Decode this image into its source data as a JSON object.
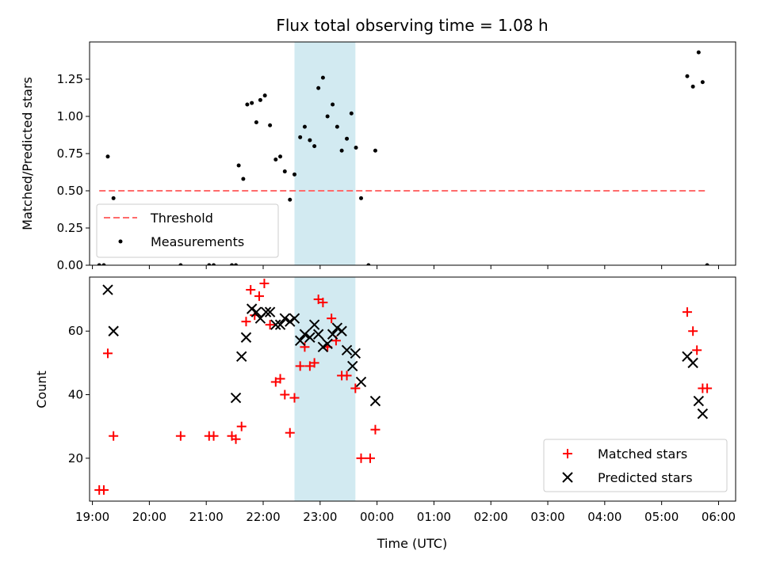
{
  "chart_data": {
    "title": "Flux total observing time = 1.08 h",
    "xlabel": "Time (UTC)",
    "x_tick_labels": [
      "19:00",
      "20:00",
      "21:00",
      "22:00",
      "23:00",
      "00:00",
      "01:00",
      "02:00",
      "03:00",
      "04:00",
      "05:00",
      "06:00"
    ],
    "x_ticks_hours": [
      19,
      20,
      21,
      22,
      23,
      24,
      25,
      26,
      27,
      28,
      29,
      30
    ],
    "xlim_hours": [
      18.95,
      30.3
    ],
    "shaded_span_hours": [
      22.55,
      23.62
    ],
    "shaded_color": "#add8e6",
    "panels": [
      {
        "type": "scatter",
        "ylabel": "Matched/Predicted stars",
        "ylim": [
          0,
          1.5
        ],
        "y_ticks": [
          0,
          0.25,
          0.5,
          0.75,
          1.0,
          1.25
        ],
        "y_tick_labels": [
          "0.00",
          "0.25",
          "0.50",
          "0.75",
          "1.00",
          "1.25"
        ],
        "threshold": {
          "name": "Threshold",
          "value": 0.5,
          "x_range_hours": [
            19.12,
            29.8
          ],
          "color": "#ff6b6b",
          "style": "dashed"
        },
        "series": [
          {
            "name": "Measurements",
            "color": "#000000",
            "marker": "dot",
            "points": [
              [
                19.12,
                0.0
              ],
              [
                19.2,
                0.0
              ],
              [
                19.27,
                0.73
              ],
              [
                19.37,
                0.45
              ],
              [
                20.55,
                0.0
              ],
              [
                21.05,
                0.0
              ],
              [
                21.13,
                0.0
              ],
              [
                21.45,
                0.0
              ],
              [
                21.52,
                0.0
              ],
              [
                21.57,
                0.67
              ],
              [
                21.65,
                0.58
              ],
              [
                21.72,
                1.08
              ],
              [
                21.8,
                1.09
              ],
              [
                21.88,
                0.96
              ],
              [
                21.95,
                1.11
              ],
              [
                22.03,
                1.14
              ],
              [
                22.12,
                0.94
              ],
              [
                22.22,
                0.71
              ],
              [
                22.3,
                0.73
              ],
              [
                22.38,
                0.63
              ],
              [
                22.47,
                0.44
              ],
              [
                22.55,
                0.61
              ],
              [
                22.65,
                0.86
              ],
              [
                22.73,
                0.93
              ],
              [
                22.82,
                0.84
              ],
              [
                22.9,
                0.8
              ],
              [
                22.97,
                1.19
              ],
              [
                23.05,
                1.26
              ],
              [
                23.13,
                1.0
              ],
              [
                23.22,
                1.08
              ],
              [
                23.3,
                0.93
              ],
              [
                23.38,
                0.77
              ],
              [
                23.47,
                0.85
              ],
              [
                23.55,
                1.02
              ],
              [
                23.63,
                0.79
              ],
              [
                23.72,
                0.45
              ],
              [
                23.85,
                0.0
              ],
              [
                23.97,
                0.77
              ],
              [
                29.45,
                1.27
              ],
              [
                29.55,
                1.2
              ],
              [
                29.65,
                1.43
              ],
              [
                29.72,
                1.23
              ],
              [
                29.8,
                0.0
              ]
            ]
          }
        ],
        "legend": {
          "position": "lower left",
          "entries": [
            "Threshold",
            "Measurements"
          ]
        }
      },
      {
        "type": "scatter",
        "ylabel": "Count",
        "ylim": [
          6.5,
          77
        ],
        "y_ticks": [
          20,
          40,
          60
        ],
        "y_tick_labels": [
          "20",
          "40",
          "60"
        ],
        "series": [
          {
            "name": "Matched stars",
            "color": "#ff0000",
            "marker": "plus",
            "points": [
              [
                19.12,
                10
              ],
              [
                19.2,
                10
              ],
              [
                19.27,
                53
              ],
              [
                19.37,
                27
              ],
              [
                20.55,
                27
              ],
              [
                21.05,
                27
              ],
              [
                21.13,
                27
              ],
              [
                21.45,
                27
              ],
              [
                21.52,
                26
              ],
              [
                21.62,
                30
              ],
              [
                21.7,
                63
              ],
              [
                21.78,
                73
              ],
              [
                21.85,
                65
              ],
              [
                21.93,
                71
              ],
              [
                22.02,
                75
              ],
              [
                22.12,
                62
              ],
              [
                22.22,
                44
              ],
              [
                22.3,
                45
              ],
              [
                22.38,
                40
              ],
              [
                22.47,
                28
              ],
              [
                22.55,
                39
              ],
              [
                22.65,
                49
              ],
              [
                22.73,
                55
              ],
              [
                22.82,
                49
              ],
              [
                22.9,
                50
              ],
              [
                22.97,
                70
              ],
              [
                23.05,
                69
              ],
              [
                23.13,
                55
              ],
              [
                23.2,
                64
              ],
              [
                23.28,
                57
              ],
              [
                23.38,
                46
              ],
              [
                23.47,
                46
              ],
              [
                23.62,
                42
              ],
              [
                23.72,
                20
              ],
              [
                23.88,
                20
              ],
              [
                23.97,
                29
              ],
              [
                29.45,
                66
              ],
              [
                29.55,
                60
              ],
              [
                29.62,
                54
              ],
              [
                29.72,
                42
              ],
              [
                29.8,
                42
              ]
            ]
          },
          {
            "name": "Predicted stars",
            "color": "#000000",
            "marker": "x",
            "points": [
              [
                19.27,
                73
              ],
              [
                19.37,
                60
              ],
              [
                21.52,
                39
              ],
              [
                21.62,
                52
              ],
              [
                21.7,
                58
              ],
              [
                21.8,
                67
              ],
              [
                21.88,
                66
              ],
              [
                21.95,
                64
              ],
              [
                22.05,
                66
              ],
              [
                22.12,
                66
              ],
              [
                22.22,
                62
              ],
              [
                22.3,
                62
              ],
              [
                22.38,
                64
              ],
              [
                22.47,
                63
              ],
              [
                22.55,
                64
              ],
              [
                22.65,
                57
              ],
              [
                22.73,
                59
              ],
              [
                22.82,
                58
              ],
              [
                22.9,
                62
              ],
              [
                22.97,
                59
              ],
              [
                23.05,
                55
              ],
              [
                23.13,
                56
              ],
              [
                23.22,
                59
              ],
              [
                23.3,
                61
              ],
              [
                23.38,
                60
              ],
              [
                23.47,
                54
              ],
              [
                23.57,
                49
              ],
              [
                23.62,
                53
              ],
              [
                23.72,
                44
              ],
              [
                23.97,
                38
              ],
              [
                29.45,
                52
              ],
              [
                29.55,
                50
              ],
              [
                29.65,
                38
              ],
              [
                29.72,
                34
              ]
            ]
          }
        ],
        "legend": {
          "position": "lower right",
          "entries": [
            "Matched stars",
            "Predicted stars"
          ]
        }
      }
    ]
  }
}
